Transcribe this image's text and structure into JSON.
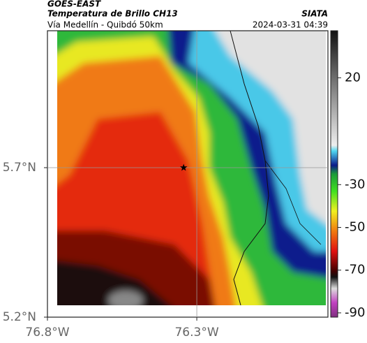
{
  "header": {
    "title": "GOES-EAST",
    "subtitle": "Temperatura de Brillo CH13",
    "route": "Vía Medellín - Quibdó 50km",
    "source": "SIATA",
    "timestamp": "2024-03-31 04:39"
  },
  "map": {
    "xlim": [
      -76.8,
      -75.861
    ],
    "ylim": [
      5.2,
      6.158
    ],
    "xticks": [
      {
        "value": -76.8,
        "label": "76.8°W"
      },
      {
        "value": -76.3,
        "label": "76.3°W"
      }
    ],
    "yticks": [
      {
        "value": 5.2,
        "label": "5.2°N"
      },
      {
        "value": 5.7,
        "label": "5.7°N"
      }
    ],
    "grid": true,
    "marker": {
      "lon": -76.344,
      "lat": 5.7
    }
  },
  "colorbar": {
    "clim": [
      -92,
      42
    ],
    "ticks": [
      20,
      -30,
      -50,
      -70,
      -90
    ]
  }
}
